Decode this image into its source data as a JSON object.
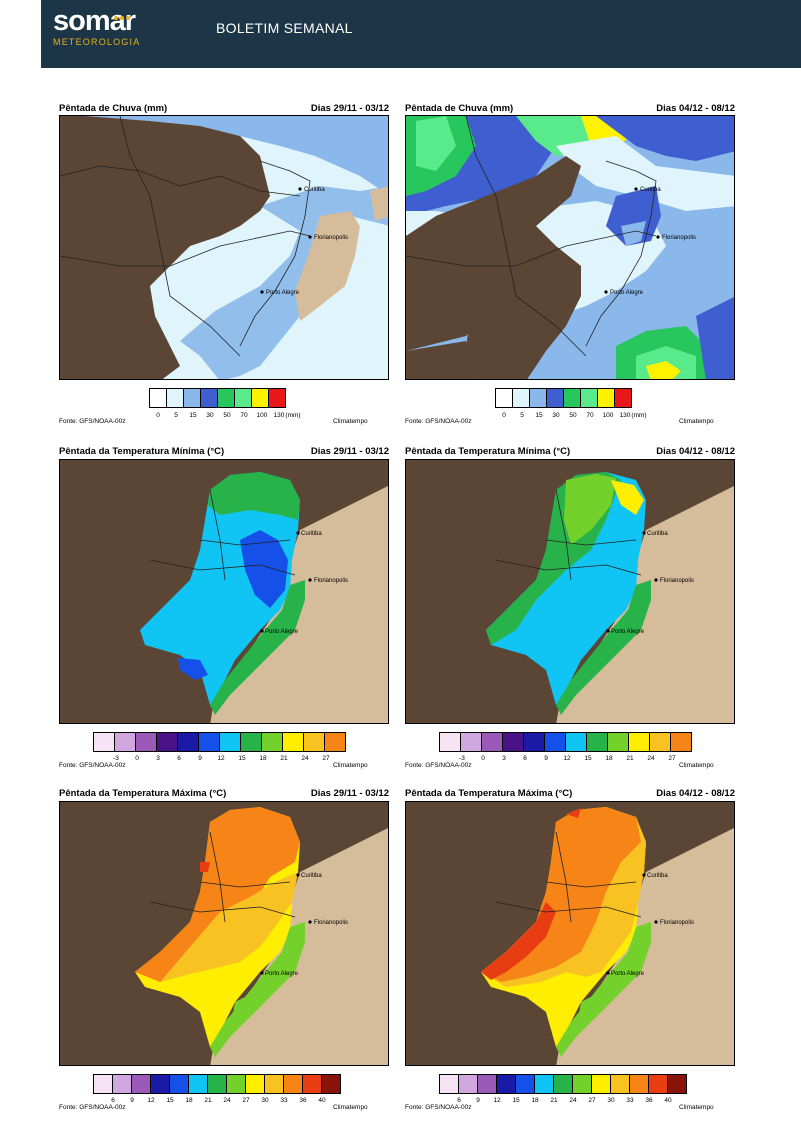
{
  "header": {
    "logo_text": "somar",
    "logo_subtitle": "METEOROLOGIA",
    "title": "BOLETIM SEMANAL"
  },
  "colors": {
    "header_bg": "#1c3547",
    "logo_accent": "#e7b21a",
    "land_outside": "#5b4534",
    "ocean": "#d5bc9b"
  },
  "cities": [
    "Curitiba",
    "Florianopolis",
    "Porto Alegre"
  ],
  "source": "Fonte: GFS/NOAA-00z",
  "credit": "Climatempo",
  "rain": {
    "title": "Pêntada de Chuva (mm)",
    "dates": [
      "Dias 29/11 - 03/12",
      "Dias 04/12 - 08/12"
    ],
    "scale_labels": [
      "0",
      "5",
      "15",
      "30",
      "50",
      "70",
      "100",
      "130"
    ],
    "unit": "(mm)",
    "colors": [
      "#ffffff",
      "#dff5fb",
      "#8ab8ea",
      "#3f5fd0",
      "#28c75e",
      "#58ea8b",
      "#fff200",
      "#e8171a"
    ]
  },
  "tmin": {
    "title": "Pêntada da Temperatura Mínima (°C)",
    "dates": [
      "Dias 29/11 - 03/12",
      "Dias 04/12 - 08/12"
    ],
    "scale_labels": [
      "-3",
      "0",
      "3",
      "6",
      "9",
      "12",
      "15",
      "18",
      "21",
      "24",
      "27"
    ],
    "colors": [
      "#f6e3f6",
      "#d0a8df",
      "#9c5ab8",
      "#4a1287",
      "#1a1aa6",
      "#1550e8",
      "#10c4f4",
      "#28b34a",
      "#74d12b",
      "#ffee00",
      "#f7c222",
      "#f78416"
    ]
  },
  "tmax": {
    "title": "Pêntada da Temperatura Máxima (°C)",
    "dates": [
      "Dias 29/11 - 03/12",
      "Dias 04/12 - 08/12"
    ],
    "scale_labels": [
      "6",
      "9",
      "12",
      "15",
      "18",
      "21",
      "24",
      "27",
      "30",
      "33",
      "36",
      "40"
    ],
    "colors": [
      "#f6e3f6",
      "#d0a8df",
      "#9c5ab8",
      "#1a1aa6",
      "#1550e8",
      "#10c4f4",
      "#28b34a",
      "#74d12b",
      "#ffee00",
      "#f7c222",
      "#f78416",
      "#e83d13",
      "#8a1309"
    ]
  }
}
